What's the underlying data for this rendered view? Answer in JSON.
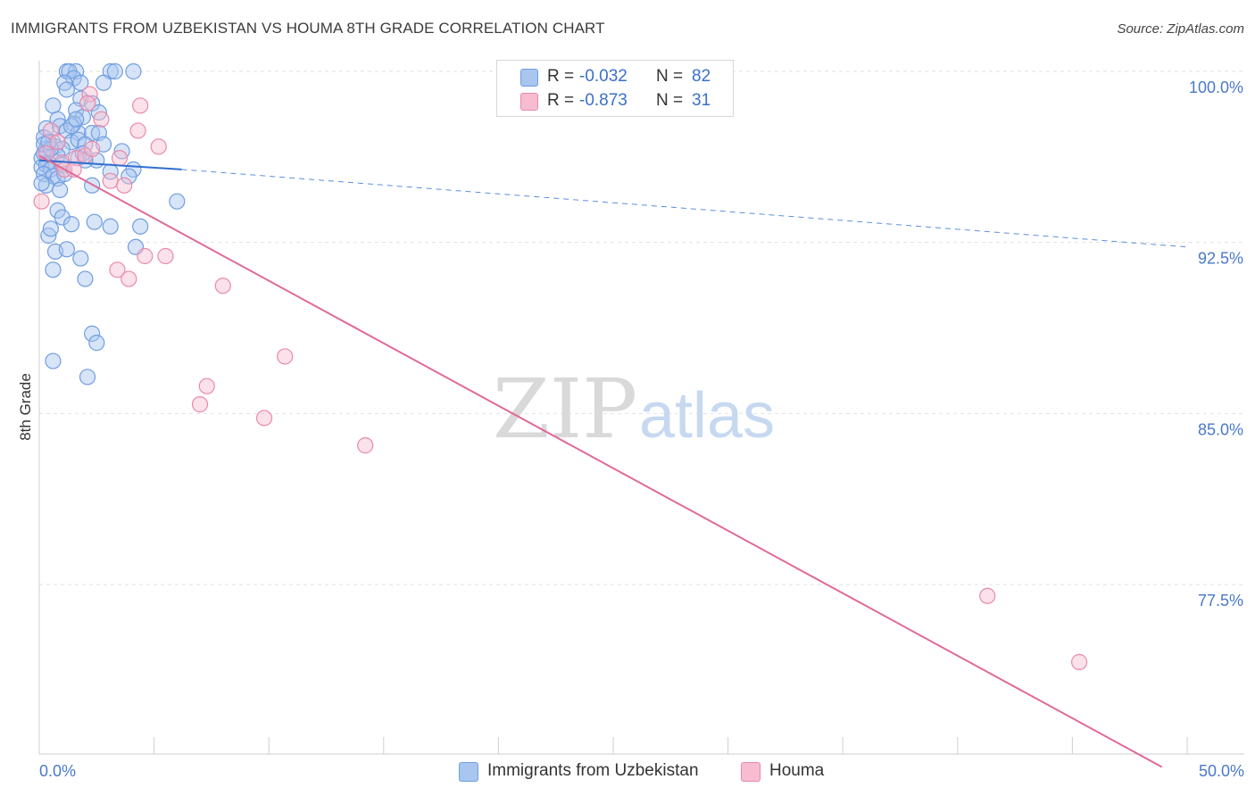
{
  "title": "IMMIGRANTS FROM UZBEKISTAN VS HOUMA 8TH GRADE CORRELATION CHART",
  "source": "Source: ZipAtlas.com",
  "watermark": {
    "zip": "ZIP",
    "atlas": "atlas"
  },
  "legend": [
    {
      "r_label": "R =",
      "r_value": "-0.032",
      "n_label": "N =",
      "n_value": "82",
      "color": "#a9c6ef",
      "border": "#6f9de0"
    },
    {
      "r_label": "R =",
      "r_value": "-0.873",
      "n_label": "N =",
      "n_value": "31",
      "color": "#f7bcd0",
      "border": "#e98aab"
    }
  ],
  "bottom_legend": [
    "Immigrants from Uzbekistan",
    "Houma"
  ],
  "chart_data": {
    "type": "scatter",
    "title": "IMMIGRANTS FROM UZBEKISTAN VS HOUMA 8TH GRADE CORRELATION CHART",
    "xlabel": "",
    "ylabel": "8th Grade",
    "xlim": [
      0,
      50
    ],
    "ylim": [
      69.5,
      101.0
    ],
    "x_tick_labels": [
      "0.0%",
      "50.0%"
    ],
    "y_ticks": [
      100.0,
      92.5,
      85.0,
      77.5
    ],
    "y_tick_labels": [
      "100.0%",
      "92.5%",
      "85.0%",
      "77.5%"
    ],
    "grid": true,
    "series": [
      {
        "name": "Immigrants from Uzbekistan",
        "color": "#6f9de0",
        "fill": "#a9c6ef",
        "trend": {
          "x0": 0.0,
          "y0": 96.1,
          "x1": 6.2,
          "y1": 95.7,
          "x_end": 50.0,
          "y_end": 92.3
        },
        "points": [
          [
            1.2,
            100.0
          ],
          [
            1.6,
            100.0
          ],
          [
            3.1,
            100.0
          ],
          [
            3.3,
            100.0
          ],
          [
            4.1,
            100.0
          ],
          [
            1.3,
            100.0
          ],
          [
            1.5,
            99.7
          ],
          [
            1.8,
            99.5
          ],
          [
            2.8,
            99.5
          ],
          [
            1.1,
            99.5
          ],
          [
            1.2,
            99.2
          ],
          [
            1.8,
            98.8
          ],
          [
            0.6,
            98.5
          ],
          [
            2.3,
            98.6
          ],
          [
            1.6,
            98.3
          ],
          [
            1.9,
            98.0
          ],
          [
            0.8,
            97.9
          ],
          [
            2.6,
            98.2
          ],
          [
            1.5,
            97.7
          ],
          [
            0.3,
            97.5
          ],
          [
            0.9,
            97.6
          ],
          [
            1.2,
            97.4
          ],
          [
            1.7,
            97.3
          ],
          [
            2.3,
            97.3
          ],
          [
            2.6,
            97.3
          ],
          [
            0.2,
            97.1
          ],
          [
            0.6,
            96.9
          ],
          [
            1.4,
            96.9
          ],
          [
            1.7,
            97.0
          ],
          [
            2.0,
            96.8
          ],
          [
            2.8,
            96.8
          ],
          [
            0.3,
            96.6
          ],
          [
            0.7,
            96.7
          ],
          [
            1.0,
            96.6
          ],
          [
            3.6,
            96.5
          ],
          [
            0.1,
            96.2
          ],
          [
            0.2,
            96.4
          ],
          [
            0.4,
            96.0
          ],
          [
            0.8,
            96.3
          ],
          [
            1.7,
            96.2
          ],
          [
            1.9,
            96.4
          ],
          [
            0.1,
            95.8
          ],
          [
            0.3,
            95.9
          ],
          [
            0.5,
            95.7
          ],
          [
            1.0,
            95.9
          ],
          [
            0.2,
            95.5
          ],
          [
            0.6,
            95.4
          ],
          [
            0.8,
            95.3
          ],
          [
            3.1,
            95.6
          ],
          [
            4.1,
            95.7
          ],
          [
            3.9,
            95.4
          ],
          [
            0.3,
            95.0
          ],
          [
            0.9,
            94.8
          ],
          [
            2.3,
            95.0
          ],
          [
            6.0,
            94.3
          ],
          [
            0.8,
            93.9
          ],
          [
            1.0,
            93.6
          ],
          [
            1.4,
            93.3
          ],
          [
            2.4,
            93.4
          ],
          [
            3.1,
            93.2
          ],
          [
            4.4,
            93.2
          ],
          [
            0.4,
            92.8
          ],
          [
            0.7,
            92.1
          ],
          [
            1.2,
            92.2
          ],
          [
            4.2,
            92.3
          ],
          [
            1.8,
            91.8
          ],
          [
            0.6,
            91.3
          ],
          [
            2.0,
            90.9
          ],
          [
            2.3,
            88.5
          ],
          [
            2.5,
            88.1
          ],
          [
            0.6,
            87.3
          ],
          [
            2.1,
            86.6
          ],
          [
            0.2,
            96.8
          ],
          [
            1.4,
            97.6
          ],
          [
            2.5,
            96.1
          ],
          [
            0.5,
            96.6
          ],
          [
            1.1,
            95.5
          ],
          [
            0.4,
            96.9
          ],
          [
            1.6,
            97.9
          ],
          [
            2.0,
            96.1
          ],
          [
            0.1,
            95.1
          ],
          [
            0.5,
            93.1
          ]
        ]
      },
      {
        "name": "Houma",
        "color": "#e98aab",
        "fill": "#f7bcd0",
        "trend": {
          "x0": 0.0,
          "y0": 96.3,
          "x1": 48.9,
          "y1": 69.5
        },
        "points": [
          [
            0.1,
            94.3
          ],
          [
            0.3,
            96.4
          ],
          [
            0.5,
            97.4
          ],
          [
            0.8,
            96.9
          ],
          [
            1.0,
            96.0
          ],
          [
            1.1,
            95.7
          ],
          [
            1.6,
            96.2
          ],
          [
            2.0,
            96.3
          ],
          [
            2.3,
            96.6
          ],
          [
            2.7,
            97.9
          ],
          [
            3.1,
            95.2
          ],
          [
            3.5,
            96.2
          ],
          [
            3.7,
            95.0
          ],
          [
            4.3,
            97.4
          ],
          [
            4.4,
            98.5
          ],
          [
            5.2,
            96.7
          ],
          [
            4.6,
            91.9
          ],
          [
            5.5,
            91.9
          ],
          [
            3.4,
            91.3
          ],
          [
            3.9,
            90.9
          ],
          [
            8.0,
            90.6
          ],
          [
            10.7,
            87.5
          ],
          [
            7.3,
            86.2
          ],
          [
            7.0,
            85.4
          ],
          [
            9.8,
            84.8
          ],
          [
            14.2,
            83.6
          ],
          [
            41.3,
            77.0
          ],
          [
            45.3,
            74.1
          ],
          [
            1.5,
            95.7
          ],
          [
            2.2,
            99.0
          ],
          [
            2.1,
            98.6
          ]
        ]
      }
    ]
  }
}
